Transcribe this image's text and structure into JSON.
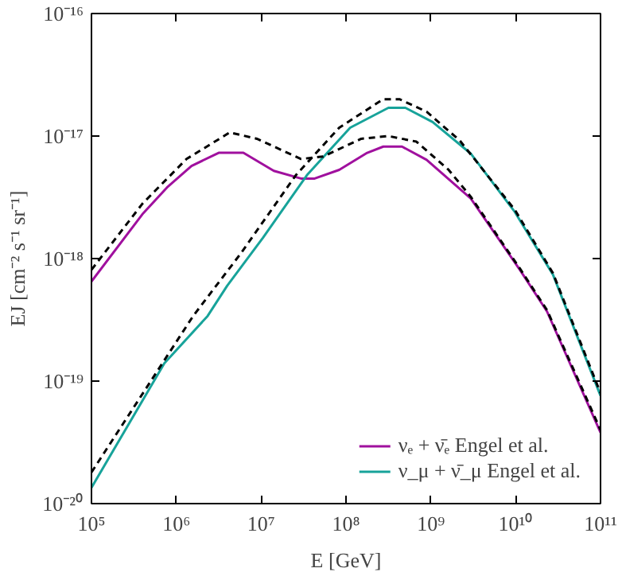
{
  "chart_data": {
    "type": "line",
    "xlabel": "E [GeV]",
    "ylabel": "EJ [cm⁻² s⁻¹ sr⁻¹]",
    "log": "xy",
    "grid": false,
    "legend": "bottom right",
    "marker": "none",
    "xlim": [
      100000.0,
      100000000000.0
    ],
    "ylim": [
      1e-20,
      1e-16
    ],
    "xticks": [
      {
        "value": 100000.0,
        "label": "10⁵"
      },
      {
        "value": 1000000.0,
        "label": "10⁶"
      },
      {
        "value": 10000000.0,
        "label": "10⁷"
      },
      {
        "value": 100000000.0,
        "label": "10⁸"
      },
      {
        "value": 1000000000.0,
        "label": "10⁹"
      },
      {
        "value": 10000000000.0,
        "label": "10¹⁰"
      },
      {
        "value": 100000000000.0,
        "label": "10¹¹"
      }
    ],
    "yticks": [
      {
        "value": 1e-20,
        "label": "10⁻²⁰"
      },
      {
        "value": 1e-19,
        "label": "10⁻¹⁹"
      },
      {
        "value": 1e-18,
        "label": "10⁻¹⁸"
      },
      {
        "value": 1e-17,
        "label": "10⁻¹⁷"
      },
      {
        "value": 1e-16,
        "label": "10⁻¹⁶"
      }
    ],
    "series": [
      {
        "name": "νₑ + ν̄ₑ Engel et al.",
        "color": "#a0109e",
        "line_style": "solid",
        "x": [
          100000.0,
          398000.0,
          776000.0,
          1510000.0,
          3160000.0,
          6170000.0,
          14100000.0,
          29500000.0,
          42700000.0,
          83200000.0,
          178000000.0,
          275000000.0,
          457000000.0,
          891000000.0,
          2950000000.0,
          11200000000.0,
          23400000000.0,
          100000000000.0
        ],
        "values": [
          6.5e-19,
          2.3e-18,
          3.8e-18,
          5.7e-18,
          7.3e-18,
          7.3e-18,
          5.2e-18,
          4.5e-18,
          4.5e-18,
          5.3e-18,
          7.3e-18,
          8.2e-18,
          8.2e-18,
          6.4e-18,
          3.1e-18,
          8.1e-19,
          3.7e-19,
          3.8e-20
        ]
      },
      {
        "name": "ν_μ + ν̄_μ Engel et al.",
        "color": "#17a39a",
        "line_style": "solid",
        "x": [
          100000.0,
          724000.0,
          2340000.0,
          3980000.0,
          10500000.0,
          34700000.0,
          112000000.0,
          316000000.0,
          501000000.0,
          1050000000.0,
          2950000000.0,
          9770000000.0,
          27500000000.0,
          100000000000.0
        ],
        "values": [
          1.35e-20,
          1.4e-19,
          3.4e-19,
          6e-19,
          1.48e-18,
          4.8e-18,
          1.17e-17,
          1.7e-17,
          1.7e-17,
          1.3e-17,
          7.2e-18,
          2.4e-18,
          7.4e-19,
          7.6e-20
        ]
      },
      {
        "color": "#000000",
        "line_style": "dashed",
        "x": [
          100000.0,
          398000.0,
          1320000.0,
          4270000.0,
          8910000.0,
          29500000.0,
          53700000.0,
          151000000.0,
          316000000.0,
          676000000.0,
          1620000000.0,
          2950000000.0,
          11200000000.0,
          23400000000.0,
          100000000000.0
        ],
        "values": [
          8.1e-19,
          2.8e-18,
          6.5e-18,
          1.07e-17,
          9.5e-18,
          6.5e-18,
          6.8e-18,
          9.5e-18,
          1e-17,
          9e-18,
          5.3e-18,
          3.2e-18,
          8.3e-19,
          3.8e-19,
          4e-20
        ]
      },
      {
        "color": "#000000",
        "line_style": "dashed",
        "x": [
          100000.0,
          1580000.0,
          2950000.0,
          5750000.0,
          25700000.0,
          83200000.0,
          275000000.0,
          427000000.0,
          891000000.0,
          2190000000.0,
          9770000000.0,
          27500000000.0,
          100000000000.0
        ],
        "values": [
          1.8e-20,
          3.4e-19,
          6e-19,
          1.1e-18,
          4.8e-18,
          1.17e-17,
          2e-17,
          2e-17,
          1.58e-17,
          9.2e-18,
          2.5e-18,
          7.6e-19,
          8e-20
        ]
      }
    ]
  }
}
